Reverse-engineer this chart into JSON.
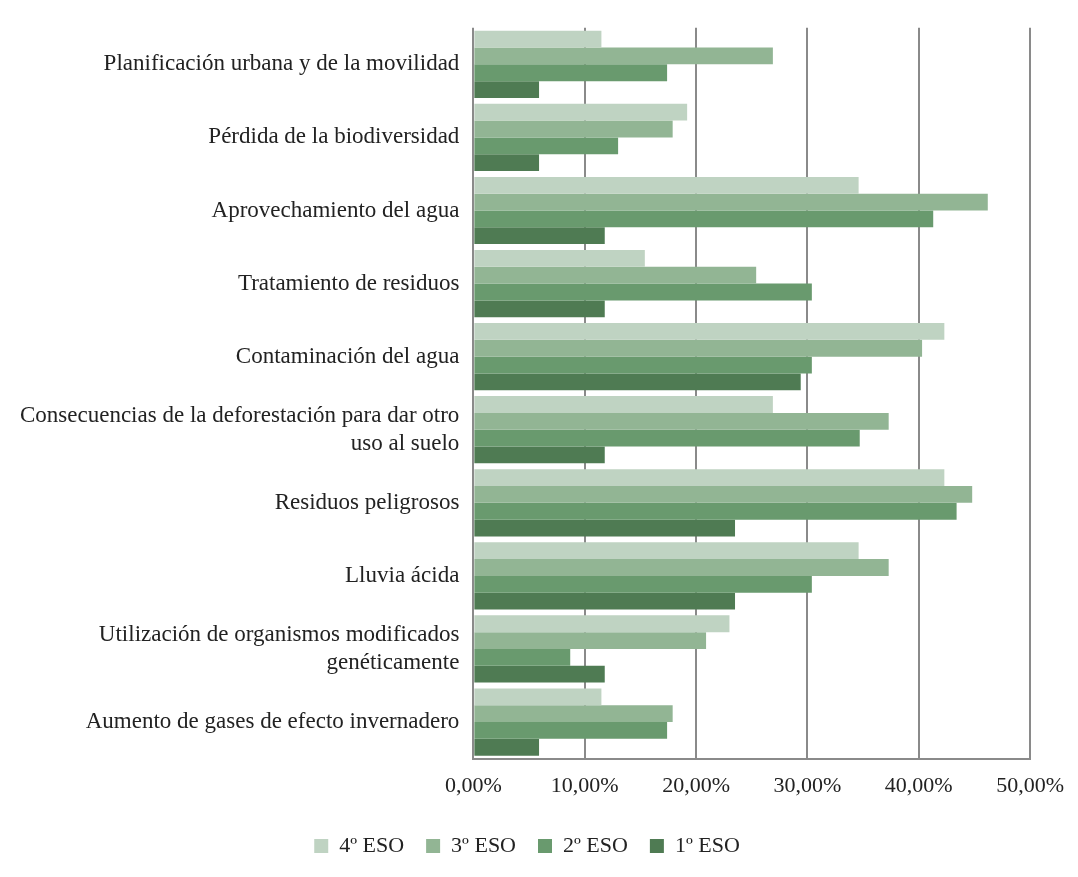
{
  "chart_data": {
    "type": "bar",
    "orientation": "horizontal",
    "categories": [
      "Planificación urbana y de la movilidad",
      "Pérdida de la biodiversidad",
      "Aprovechamiento del agua",
      "Tratamiento de residuos",
      "Contaminación del agua",
      "Consecuencias de la deforestación para dar otro uso al suelo",
      "Residuos peligrosos",
      "Lluvia ácida",
      "Utilización de organismos modificados genéticamente",
      "Aumento de gases de efecto invernadero"
    ],
    "series": [
      {
        "name": "4º ESO",
        "color": "#bfd3c2",
        "values": [
          11.5,
          19.2,
          34.6,
          15.4,
          42.3,
          26.9,
          42.3,
          34.6,
          23.0,
          11.5
        ]
      },
      {
        "name": "3º ESO",
        "color": "#92b594",
        "values": [
          26.9,
          17.9,
          46.2,
          25.4,
          40.3,
          37.3,
          44.8,
          37.3,
          20.9,
          17.9
        ]
      },
      {
        "name": "2º ESO",
        "color": "#699a6e",
        "values": [
          17.4,
          13.0,
          41.3,
          30.4,
          30.4,
          34.7,
          43.4,
          30.4,
          8.7,
          17.4
        ]
      },
      {
        "name": "1º ESO",
        "color": "#4f7b53",
        "values": [
          5.9,
          5.9,
          11.8,
          11.8,
          29.4,
          11.8,
          23.5,
          23.5,
          11.8,
          5.9
        ]
      }
    ],
    "xlim": [
      0,
      50
    ],
    "xticks": [
      {
        "value": 0,
        "label": "0,00%"
      },
      {
        "value": 10,
        "label": "10,00%"
      },
      {
        "value": 20,
        "label": "20,00%"
      },
      {
        "value": 30,
        "label": "30,00%"
      },
      {
        "value": 40,
        "label": "40,00%"
      },
      {
        "value": 50,
        "label": "50,00%"
      }
    ],
    "grid": "x",
    "legend": "bottom"
  }
}
